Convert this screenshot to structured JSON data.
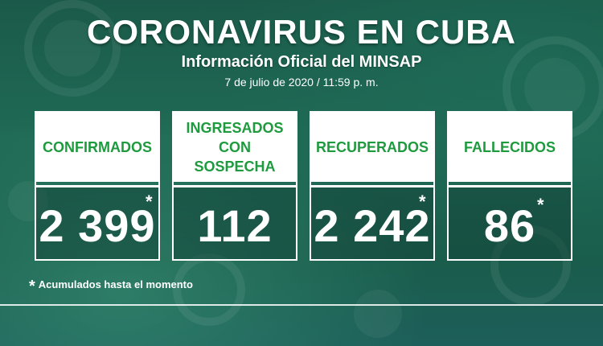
{
  "header": {
    "title": "CORONAVIRUS EN CUBA",
    "subtitle": "Información Oficial del MINSAP",
    "date": "7 de julio de 2020 / 11:59 p. m."
  },
  "cards": [
    {
      "label": "CONFIRMADOS",
      "value": "2 399",
      "asterisk": "*"
    },
    {
      "label": "INGRESADOS CON SOSPECHA",
      "value": "112"
    },
    {
      "label": "RECUPERADOS",
      "value": "2 242",
      "asterisk": "*"
    },
    {
      "label": "FALLECIDOS",
      "value": "86",
      "asterisk": "*"
    }
  ],
  "footnote": {
    "asterisk": "*",
    "text": "Acumulados hasta el momento"
  },
  "colors": {
    "label_green": "#1e9b3e",
    "background": "#1f6a55"
  }
}
